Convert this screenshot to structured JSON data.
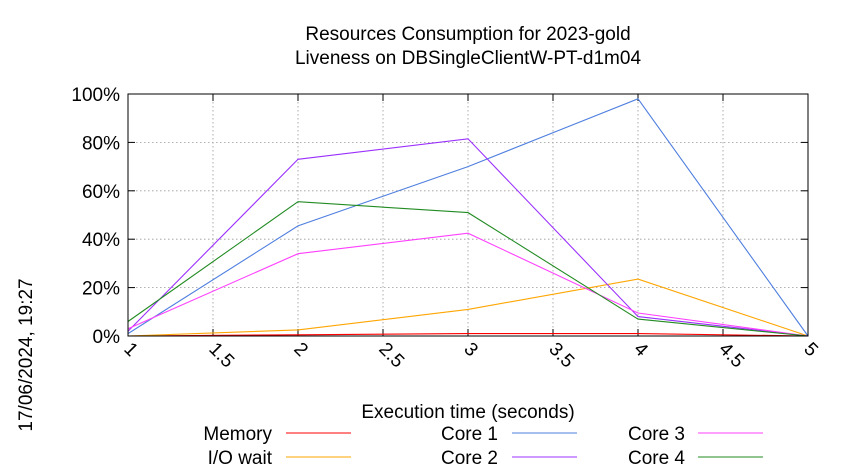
{
  "chart_data": {
    "type": "line",
    "title": "Resources Consumption for 2023-gold",
    "subtitle": "Liveness on DBSingleClientW-PT-d1m04",
    "xlabel": "Execution time (seconds)",
    "ylabel": "",
    "xlim": [
      1,
      5
    ],
    "ylim": [
      0,
      100
    ],
    "x_ticks": [
      1,
      1.5,
      2,
      2.5,
      3,
      3.5,
      4,
      4.5,
      5
    ],
    "x_tick_labels": [
      "1",
      "1.5",
      "2",
      "2.5",
      "3",
      "3.5",
      "4",
      "4.5",
      "5"
    ],
    "y_ticks": [
      0,
      20,
      40,
      60,
      80,
      100
    ],
    "y_tick_labels": [
      "0%",
      "20%",
      "40%",
      "60%",
      "80%",
      "100%"
    ],
    "grid": true,
    "legend_position": "bottom",
    "timestamp": "17/06/2024, 19:27",
    "x": [
      1,
      2,
      3,
      4,
      5
    ],
    "series": [
      {
        "name": "Memory",
        "color": "#ff0000",
        "values": [
          0,
          0.5,
          1,
          1,
          0
        ]
      },
      {
        "name": "I/O wait",
        "color": "#ffa500",
        "values": [
          0,
          2.5,
          11,
          23.5,
          0
        ]
      },
      {
        "name": "Core 1",
        "color": "#4f7fdf",
        "values": [
          1,
          45.5,
          70,
          98,
          0
        ]
      },
      {
        "name": "Core 2",
        "color": "#9b30ff",
        "values": [
          2,
          73,
          81.5,
          8,
          0
        ]
      },
      {
        "name": "Core 3",
        "color": "#ff40ff",
        "values": [
          3,
          34,
          42.5,
          9.5,
          0
        ]
      },
      {
        "name": "Core 4",
        "color": "#228b22",
        "values": [
          6,
          55.5,
          51,
          7,
          0
        ]
      }
    ]
  }
}
